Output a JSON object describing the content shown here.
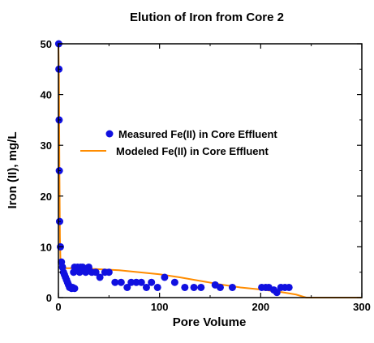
{
  "chart_data": {
    "type": "scatter",
    "title": "Elution of Iron from Core 2",
    "xlabel": "Pore Volume",
    "ylabel": "Iron (II), mg/L",
    "xlim": [
      0,
      300
    ],
    "ylim": [
      0,
      50
    ],
    "x_ticks": [
      0,
      100,
      200,
      300
    ],
    "y_ticks": [
      0,
      10,
      20,
      30,
      40,
      50
    ],
    "grid": false,
    "legend_placement": "center",
    "colors": {
      "measured": "#1010e0",
      "modeled": "#ff8c00"
    },
    "series": [
      {
        "name": "Measured Fe(II) in Core Effluent",
        "kind": "scatter",
        "points": [
          [
            0.3,
            50
          ],
          [
            0.5,
            45
          ],
          [
            0.7,
            35
          ],
          [
            0.9,
            25
          ],
          [
            1.2,
            15
          ],
          [
            2,
            10
          ],
          [
            3,
            7
          ],
          [
            4,
            6
          ],
          [
            5,
            5
          ],
          [
            6,
            4.5
          ],
          [
            7,
            4
          ],
          [
            8,
            3.5
          ],
          [
            9,
            3
          ],
          [
            10,
            2.5
          ],
          [
            11,
            2
          ],
          [
            13,
            1.8
          ],
          [
            14,
            2
          ],
          [
            16,
            1.8
          ],
          [
            15,
            5
          ],
          [
            16,
            6
          ],
          [
            18,
            5.5
          ],
          [
            19,
            6
          ],
          [
            21,
            5
          ],
          [
            22,
            6
          ],
          [
            24,
            6
          ],
          [
            27,
            5
          ],
          [
            30,
            6
          ],
          [
            33,
            5
          ],
          [
            37,
            5
          ],
          [
            41,
            4
          ],
          [
            46,
            5
          ],
          [
            50,
            5
          ],
          [
            56,
            3
          ],
          [
            62,
            3
          ],
          [
            68,
            2
          ],
          [
            72,
            3
          ],
          [
            77,
            3
          ],
          [
            82,
            3
          ],
          [
            87,
            2
          ],
          [
            92,
            3
          ],
          [
            98,
            2
          ],
          [
            105,
            4
          ],
          [
            115,
            3
          ],
          [
            125,
            2
          ],
          [
            134,
            2
          ],
          [
            141,
            2
          ],
          [
            155,
            2.5
          ],
          [
            160,
            2
          ],
          [
            172,
            2
          ],
          [
            201,
            2
          ],
          [
            205,
            2
          ],
          [
            208,
            2
          ],
          [
            213,
            1.5
          ],
          [
            216,
            1
          ],
          [
            220,
            2
          ],
          [
            224,
            2
          ],
          [
            228,
            2
          ]
        ]
      },
      {
        "name": "Modeled Fe(II) in Core Effluent",
        "kind": "line",
        "points": [
          [
            0,
            52
          ],
          [
            0.5,
            44
          ],
          [
            1,
            25
          ],
          [
            1.5,
            12
          ],
          [
            2,
            7.5
          ],
          [
            3,
            6
          ],
          [
            5,
            5.8
          ],
          [
            20,
            5.8
          ],
          [
            40,
            5.6
          ],
          [
            60,
            5.4
          ],
          [
            80,
            5
          ],
          [
            100,
            4.6
          ],
          [
            120,
            4
          ],
          [
            140,
            3.3
          ],
          [
            160,
            2.6
          ],
          [
            180,
            2
          ],
          [
            200,
            1.6
          ],
          [
            220,
            1.1
          ],
          [
            235,
            0.6
          ],
          [
            245,
            0
          ],
          [
            300,
            0
          ]
        ]
      }
    ]
  }
}
